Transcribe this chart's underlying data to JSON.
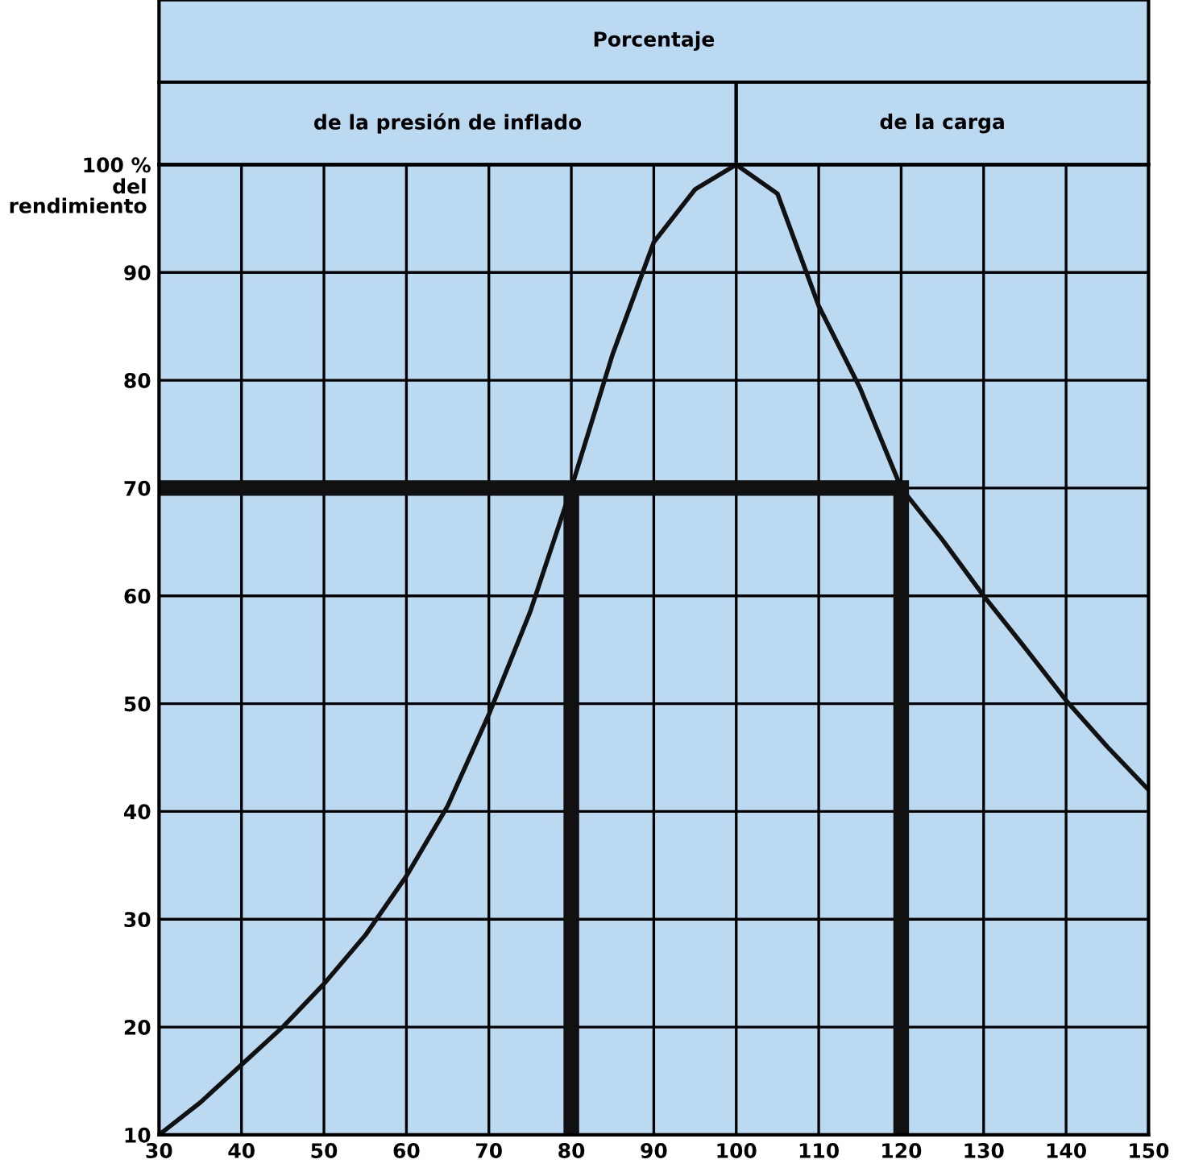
{
  "chart_data": {
    "type": "line",
    "title": "Porcentaje",
    "ylabel": "del rendimiento",
    "annotations": [
      "de la presión de inflado",
      "de la carga"
    ],
    "series": [
      {
        "color": "#111111",
        "x": [
          30,
          35,
          40,
          45,
          50,
          55,
          60,
          65,
          70,
          75,
          80,
          85,
          90,
          95,
          100,
          105,
          110,
          115,
          120,
          125,
          130,
          135,
          140,
          145,
          150
        ],
        "values": [
          10,
          13,
          16.5,
          20,
          24,
          28.5,
          34,
          40.5,
          49,
          58.5,
          70,
          82.4,
          92.8,
          97.7,
          100,
          97.3,
          86.9,
          79.3,
          70,
          65.2,
          60,
          55.2,
          50.3,
          46,
          42
        ]
      },
      {
        "color": "#111111",
        "x": [
          30,
          120,
          120
        ],
        "values": [
          70,
          70,
          10
        ]
      },
      {
        "color": "#111111",
        "x": [
          80,
          80
        ],
        "values": [
          70,
          10
        ]
      }
    ],
    "xlim": [
      30,
      150
    ],
    "ylim": [
      10,
      100
    ],
    "xticks": [
      30,
      40,
      50,
      60,
      70,
      80,
      90,
      100,
      110,
      120,
      130,
      140,
      150
    ],
    "yticks": [
      10,
      20,
      30,
      40,
      50,
      60,
      70,
      80,
      90,
      {
        "value": 100,
        "label": "100 %"
      }
    ],
    "grid": true,
    "marker": "none",
    "line_style": "solid"
  }
}
